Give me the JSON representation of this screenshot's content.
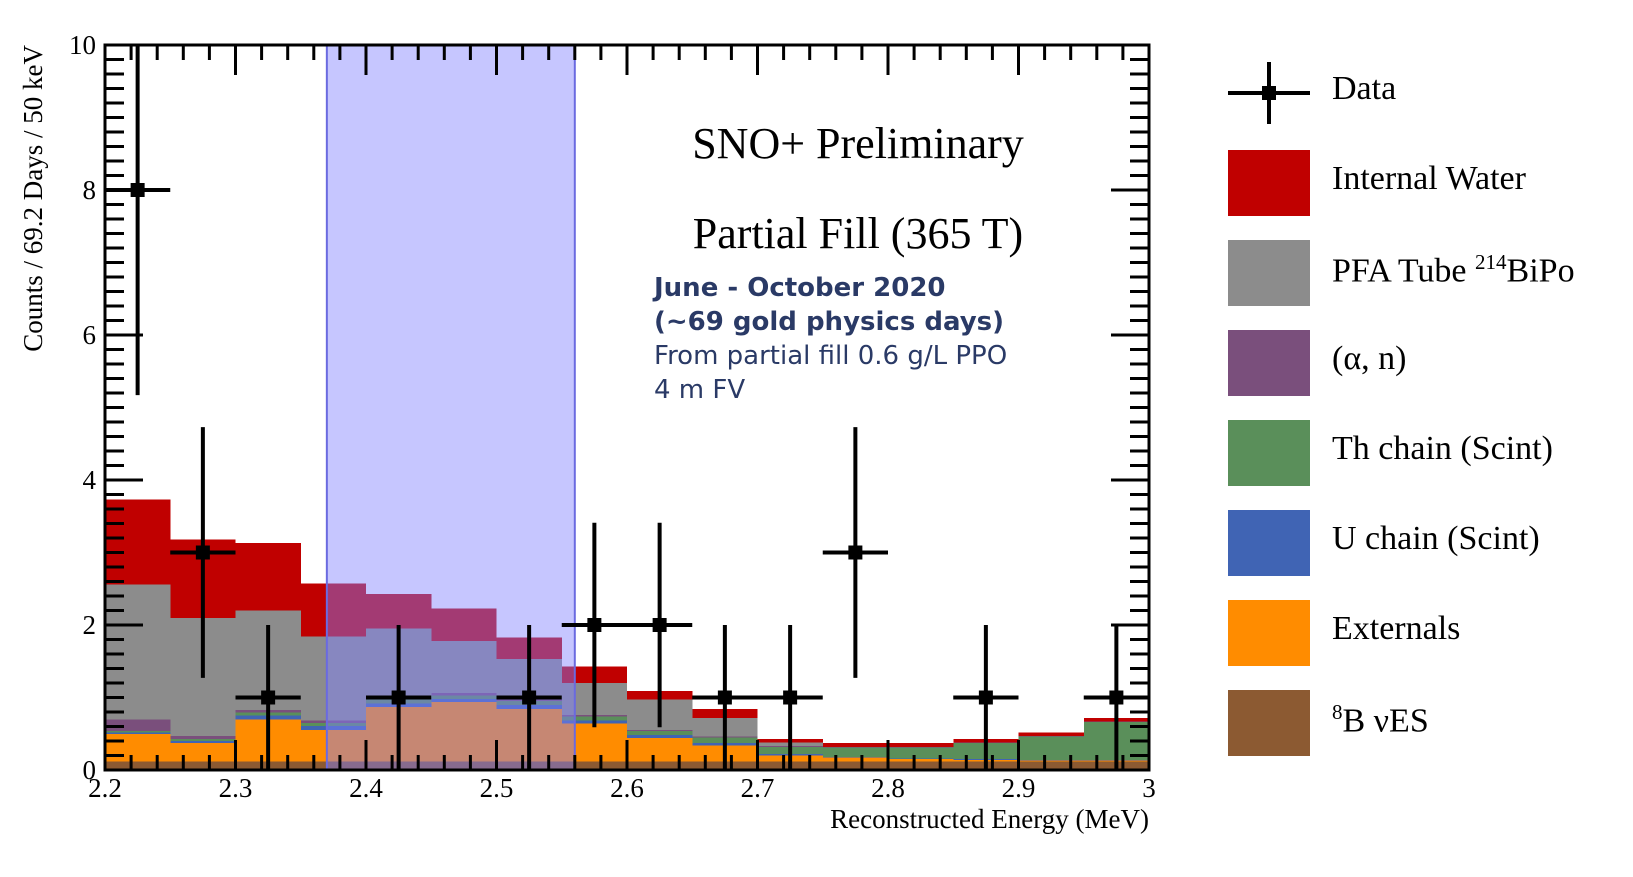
{
  "chart_data": {
    "type": "bar",
    "subtype": "stacked-histogram-with-data-points",
    "title": "SNO+ Preliminary",
    "subtitle": "Partial Fill (365 T)",
    "annotation": {
      "line1": "June - October 2020",
      "line2": "(~69 gold physics days)",
      "line3": "From partial fill 0.6 g/L PPO",
      "line4": "4 m FV"
    },
    "xlabel": "Reconstructed Energy (MeV)",
    "ylabel": "Counts / 69.2 Days / 50 keV",
    "xlim": [
      2.2,
      3.0
    ],
    "ylim": [
      0,
      10
    ],
    "x_ticks": [
      "2.2",
      "2.3",
      "2.4",
      "2.5",
      "2.6",
      "2.7",
      "2.8",
      "2.9",
      "3"
    ],
    "y_ticks": [
      "0",
      "2",
      "4",
      "6",
      "8",
      "10"
    ],
    "grid": false,
    "legend_position": "right",
    "bin_edges": [
      2.2,
      2.25,
      2.3,
      2.35,
      2.4,
      2.45,
      2.5,
      2.55,
      2.6,
      2.65,
      2.7,
      2.75,
      2.8,
      2.85,
      2.9,
      2.95,
      3.0
    ],
    "stack_order_bottom_to_top": [
      "8B vES",
      "Externals",
      "U chain (Scint)",
      "Th chain (Scint)",
      "(α, n)",
      "PFA Tube 214BiPo",
      "Internal Water"
    ],
    "series": [
      {
        "name": "Internal Water",
        "color": "#c00000",
        "values": [
          1.17,
          1.08,
          0.93,
          0.73,
          0.48,
          0.45,
          0.3,
          0.23,
          0.12,
          0.12,
          0.05,
          0.05,
          0.05,
          0.05,
          0.05,
          0.05
        ]
      },
      {
        "name": "PFA Tube 214BiPo",
        "color": "#8c8c8c",
        "values": [
          1.86,
          1.63,
          1.37,
          1.16,
          0.95,
          0.72,
          0.55,
          0.44,
          0.42,
          0.26,
          0.05,
          0.0,
          0.0,
          0.0,
          0.0,
          0.0
        ]
      },
      {
        "name": "(α, n)",
        "color": "#7a4f7c",
        "values": [
          0.16,
          0.04,
          0.04,
          0.03,
          0.03,
          0.03,
          0.03,
          0.02,
          0.01,
          0.01,
          0.01,
          0.01,
          0.01,
          0.01,
          0.01,
          0.01
        ]
      },
      {
        "name": "Th chain (Scint)",
        "color": "#5a8f5a",
        "values": [
          0.02,
          0.03,
          0.04,
          0.04,
          0.05,
          0.05,
          0.05,
          0.06,
          0.06,
          0.08,
          0.1,
          0.13,
          0.15,
          0.22,
          0.32,
          0.52
        ]
      },
      {
        "name": "U chain (Scint)",
        "color": "#4064b4",
        "values": [
          0.02,
          0.03,
          0.05,
          0.06,
          0.05,
          0.04,
          0.06,
          0.04,
          0.04,
          0.03,
          0.02,
          0.01,
          0.01,
          0.01,
          0.01,
          0.01
        ]
      },
      {
        "name": "Externals",
        "color": "#ff8c00",
        "values": [
          0.38,
          0.25,
          0.58,
          0.43,
          0.75,
          0.82,
          0.72,
          0.52,
          0.32,
          0.22,
          0.08,
          0.05,
          0.03,
          0.02,
          0.01,
          0.01
        ]
      },
      {
        "name": "8B vES",
        "color": "#8c5a32",
        "values": [
          0.12,
          0.12,
          0.12,
          0.12,
          0.12,
          0.12,
          0.12,
          0.12,
          0.12,
          0.12,
          0.12,
          0.12,
          0.12,
          0.12,
          0.12,
          0.12
        ]
      }
    ],
    "data_points": {
      "name": "Data",
      "x": [
        2.225,
        2.275,
        2.325,
        2.425,
        2.525,
        2.575,
        2.625,
        2.675,
        2.725,
        2.775,
        2.875,
        2.975
      ],
      "y": [
        8,
        3,
        1,
        1,
        1,
        2,
        2,
        1,
        1,
        3,
        1,
        1
      ],
      "y_err_low": [
        2.83,
        1.73,
        1.0,
        1.0,
        1.0,
        1.41,
        1.41,
        1.0,
        1.0,
        1.73,
        1.0,
        1.0
      ],
      "y_err_high": [
        2.83,
        1.73,
        1.0,
        1.0,
        1.0,
        1.41,
        1.41,
        1.0,
        1.0,
        1.73,
        1.0,
        1.0
      ],
      "x_err": 0.025
    },
    "roi_band": {
      "x_min": 2.37,
      "x_max": 2.56,
      "color": "#8080ff",
      "opacity": 0.45
    }
  },
  "legend": {
    "items": [
      {
        "label": "Data",
        "type": "marker"
      },
      {
        "label": "Internal Water",
        "color": "#c00000"
      },
      {
        "label_main": "PFA Tube ",
        "label_sup": "214",
        "label_tail": "BiPo",
        "color": "#8c8c8c"
      },
      {
        "label": "(α, n)",
        "color": "#7a4f7c"
      },
      {
        "label": "Th chain (Scint)",
        "color": "#5a8f5a"
      },
      {
        "label": "U chain (Scint)",
        "color": "#4064b4"
      },
      {
        "label": "Externals",
        "color": "#ff8c00"
      },
      {
        "label_sup": "8",
        "label_tail": "B νES",
        "color": "#8c5a32"
      }
    ]
  }
}
